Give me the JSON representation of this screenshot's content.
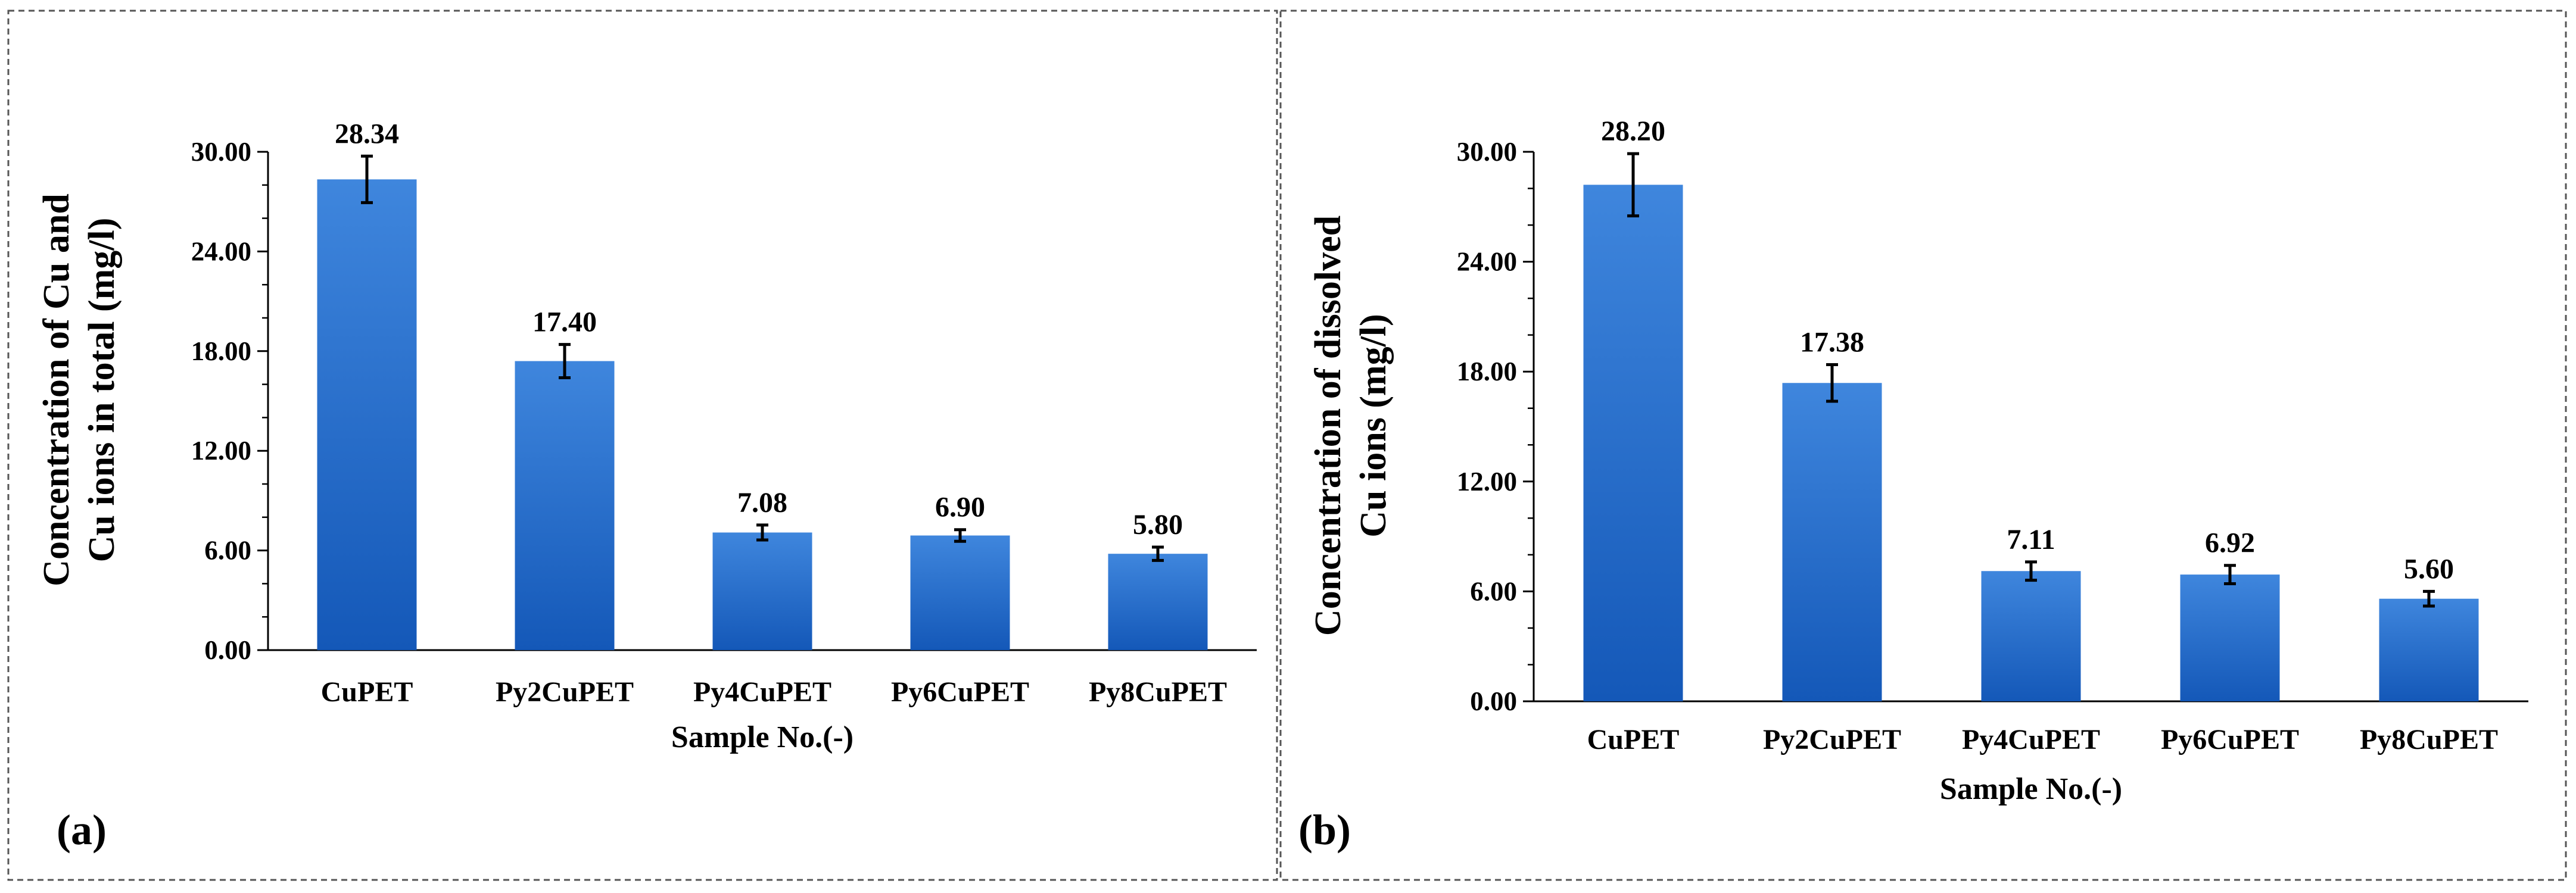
{
  "chart_data": [
    {
      "type": "bar",
      "panel_label": "(a)",
      "categories": [
        "CuPET",
        "Py2CuPET",
        "Py4CuPET",
        "Py6CuPET",
        "Py8CuPET"
      ],
      "values": [
        28.34,
        17.4,
        7.08,
        6.9,
        5.8
      ],
      "value_labels": [
        "28.34",
        "17.40",
        "7.08",
        "6.90",
        "5.80"
      ],
      "errors": [
        1.4,
        1.0,
        0.45,
        0.35,
        0.4
      ],
      "xlabel": "Sample No.(-)",
      "ylabel_lines": [
        "Concentration of Cu and",
        "Cu ions in total (mg/l)"
      ],
      "ylim": [
        0,
        30
      ],
      "yticks": [
        0,
        6,
        12,
        18,
        24,
        30
      ],
      "ytick_labels": [
        "0.00",
        "6.00",
        "12.00",
        "18.00",
        "24.00",
        "30.00"
      ],
      "bar_color_top": "#3f86dd",
      "bar_color_bottom": "#1458b8"
    },
    {
      "type": "bar",
      "panel_label": "(b)",
      "categories": [
        "CuPET",
        "Py2CuPET",
        "Py4CuPET",
        "Py6CuPET",
        "Py8CuPET"
      ],
      "values": [
        28.2,
        17.38,
        7.11,
        6.92,
        5.6
      ],
      "value_labels": [
        "28.20",
        "17.38",
        "7.11",
        "6.92",
        "5.60"
      ],
      "errors": [
        1.7,
        1.0,
        0.5,
        0.5,
        0.4
      ],
      "xlabel": "Sample No.(-)",
      "ylabel_lines": [
        "Concentration of dissolved",
        "Cu ions (mg/l)"
      ],
      "ylim": [
        0,
        30
      ],
      "yticks": [
        0,
        6,
        12,
        18,
        24,
        30
      ],
      "ytick_labels": [
        "0.00",
        "6.00",
        "12.00",
        "18.00",
        "24.00",
        "30.00"
      ],
      "bar_color_top": "#3f86dd",
      "bar_color_bottom": "#1458b8"
    }
  ]
}
